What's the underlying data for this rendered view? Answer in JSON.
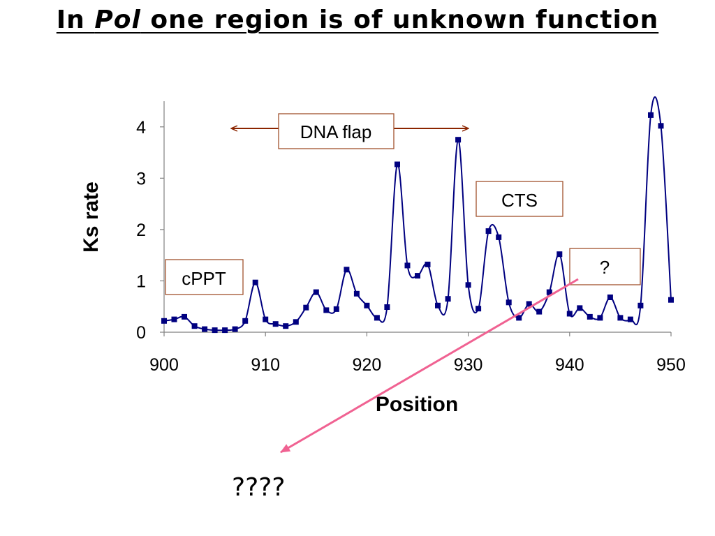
{
  "slide": {
    "title_pre": "In ",
    "title_italic": "Pol",
    "title_post": " one region is of unknown function",
    "question_text": "????"
  },
  "colors": {
    "series": "#000080",
    "callout_border": "#a0522d",
    "flap_arrow": "#8b2500",
    "pointer_arrow": "#f06292"
  },
  "chart_data": {
    "type": "line",
    "xlabel": "Position",
    "ylabel": "Ks rate",
    "xlim": [
      900,
      950
    ],
    "ylim": [
      0,
      4.5
    ],
    "xticks": [
      900,
      910,
      920,
      930,
      940,
      950
    ],
    "yticks": [
      0,
      1,
      2,
      3,
      4
    ],
    "grid": false,
    "series": [
      {
        "x": [
          900,
          901,
          902,
          903,
          904,
          905,
          906,
          907,
          908,
          909,
          910,
          911,
          912,
          913,
          914,
          915,
          916,
          917,
          918,
          919,
          920,
          921,
          922,
          923,
          924,
          925,
          926,
          927,
          928,
          929,
          930,
          931,
          932,
          933,
          934,
          935,
          936,
          937,
          938,
          939,
          940,
          941,
          942,
          943,
          944,
          945,
          946,
          947,
          948,
          949,
          950
        ],
        "values": [
          0.22,
          0.25,
          0.3,
          0.12,
          0.06,
          0.04,
          0.04,
          0.06,
          0.22,
          0.97,
          0.25,
          0.16,
          0.12,
          0.2,
          0.48,
          0.78,
          0.43,
          0.45,
          1.22,
          0.75,
          0.52,
          0.28,
          0.49,
          3.27,
          1.3,
          1.1,
          1.32,
          0.52,
          0.65,
          3.75,
          0.92,
          0.46,
          1.97,
          1.85,
          0.58,
          0.28,
          0.55,
          0.4,
          0.78,
          1.52,
          0.36,
          0.47,
          0.3,
          0.28,
          0.68,
          0.28,
          0.25,
          0.52,
          4.23,
          4.02,
          0.63
        ]
      }
    ],
    "annotations": {
      "cppt": "cPPT",
      "dna_flap": "DNA flap",
      "cts": "CTS",
      "unknown": "?"
    }
  }
}
